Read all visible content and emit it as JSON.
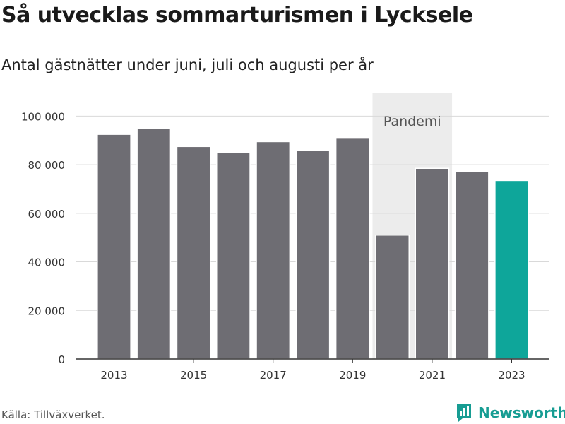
{
  "title": "Så utvecklas sommarturismen i Lycksele",
  "subtitle": "Antal gästnätter under juni, juli och augusti per år",
  "source": "Källa: Tillväxverket.",
  "brand": "Newsworthy",
  "colors": {
    "bar": "#6e6d73",
    "highlight": "#0ea69a",
    "pandemic_band": "#ececec",
    "grid": "#d9d9d9",
    "brand": "#179d93"
  },
  "chart_data": {
    "type": "bar",
    "categories": [
      "2013",
      "2014",
      "2015",
      "2016",
      "2017",
      "2018",
      "2019",
      "2020",
      "2021",
      "2022",
      "2023"
    ],
    "values": [
      92500,
      95000,
      87500,
      85000,
      89500,
      86000,
      91200,
      51000,
      78500,
      77300,
      73500
    ],
    "highlight_category": "2023",
    "xticks": [
      "2013",
      "2015",
      "2017",
      "2019",
      "2021",
      "2023"
    ],
    "yticks": [
      0,
      20000,
      40000,
      60000,
      80000,
      100000
    ],
    "ytick_labels": [
      "0",
      "20 000",
      "40 000",
      "60 000",
      "80 000",
      "100 000"
    ],
    "ylim": [
      0,
      110000
    ],
    "grid": true,
    "annotation": {
      "label": "Pandemi",
      "from_category": "2020",
      "to_category": "2021"
    }
  }
}
